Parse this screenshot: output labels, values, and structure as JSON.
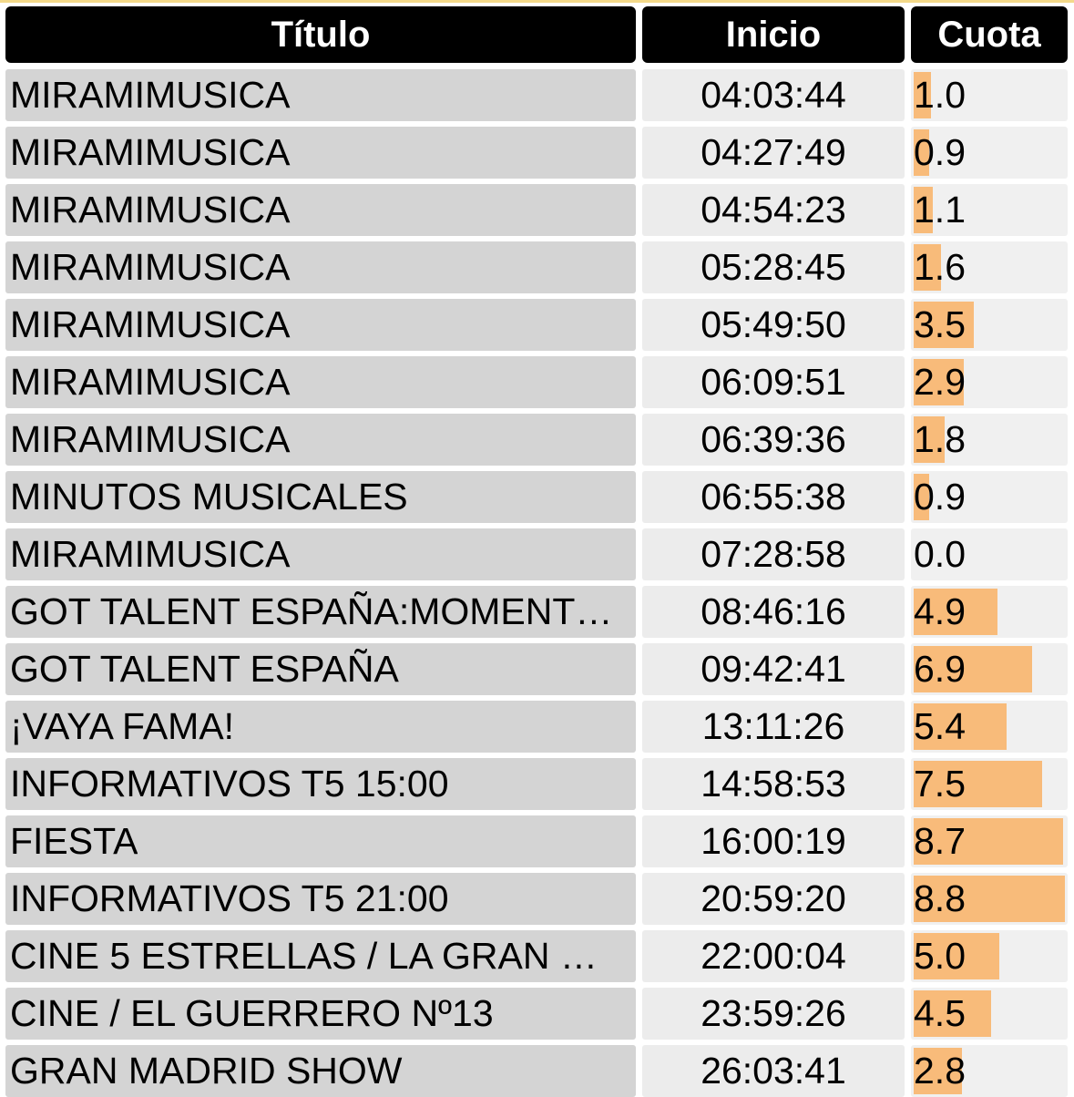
{
  "chart_data": {
    "type": "table",
    "headers": {
      "title": "Título",
      "start": "Inicio",
      "share": "Cuota"
    },
    "share_max": 8.8,
    "rows": [
      {
        "title": "MIRAMIMUSICA",
        "start": "04:03:44",
        "share": 1.0,
        "share_label": "1.0"
      },
      {
        "title": "MIRAMIMUSICA",
        "start": "04:27:49",
        "share": 0.9,
        "share_label": "0.9"
      },
      {
        "title": "MIRAMIMUSICA",
        "start": "04:54:23",
        "share": 1.1,
        "share_label": "1.1"
      },
      {
        "title": "MIRAMIMUSICA",
        "start": "05:28:45",
        "share": 1.6,
        "share_label": "1.6"
      },
      {
        "title": "MIRAMIMUSICA",
        "start": "05:49:50",
        "share": 3.5,
        "share_label": "3.5"
      },
      {
        "title": "MIRAMIMUSICA",
        "start": "06:09:51",
        "share": 2.9,
        "share_label": "2.9"
      },
      {
        "title": "MIRAMIMUSICA",
        "start": "06:39:36",
        "share": 1.8,
        "share_label": "1.8"
      },
      {
        "title": "MINUTOS MUSICALES",
        "start": "06:55:38",
        "share": 0.9,
        "share_label": "0.9"
      },
      {
        "title": "MIRAMIMUSICA",
        "start": "07:28:58",
        "share": 0.0,
        "share_label": "0.0"
      },
      {
        "title": "GOT TALENT ESPAÑA:MOMENT…",
        "start": "08:46:16",
        "share": 4.9,
        "share_label": "4.9"
      },
      {
        "title": "GOT TALENT ESPAÑA",
        "start": "09:42:41",
        "share": 6.9,
        "share_label": "6.9"
      },
      {
        "title": "¡VAYA FAMA!",
        "start": "13:11:26",
        "share": 5.4,
        "share_label": "5.4"
      },
      {
        "title": "INFORMATIVOS T5 15:00",
        "start": "14:58:53",
        "share": 7.5,
        "share_label": "7.5"
      },
      {
        "title": "FIESTA",
        "start": "16:00:19",
        "share": 8.7,
        "share_label": "8.7"
      },
      {
        "title": "INFORMATIVOS T5 21:00",
        "start": "20:59:20",
        "share": 8.8,
        "share_label": "8.8"
      },
      {
        "title": "CINE 5 ESTRELLAS / LA GRAN …",
        "start": "22:00:04",
        "share": 5.0,
        "share_label": "5.0"
      },
      {
        "title": "CINE / EL GUERRERO Nº13",
        "start": "23:59:26",
        "share": 4.5,
        "share_label": "4.5"
      },
      {
        "title": "GRAN MADRID SHOW",
        "start": "26:03:41",
        "share": 2.8,
        "share_label": "2.8"
      }
    ],
    "colors": {
      "header_bg": "#000000",
      "header_text": "#ffffff",
      "title_cell_bg": "#d4d4d4",
      "start_cell_bg": "#ececec",
      "share_cell_bg": "#f0f0f0",
      "bar": "#f8bb7a",
      "top_line": "#f3d98a"
    }
  }
}
